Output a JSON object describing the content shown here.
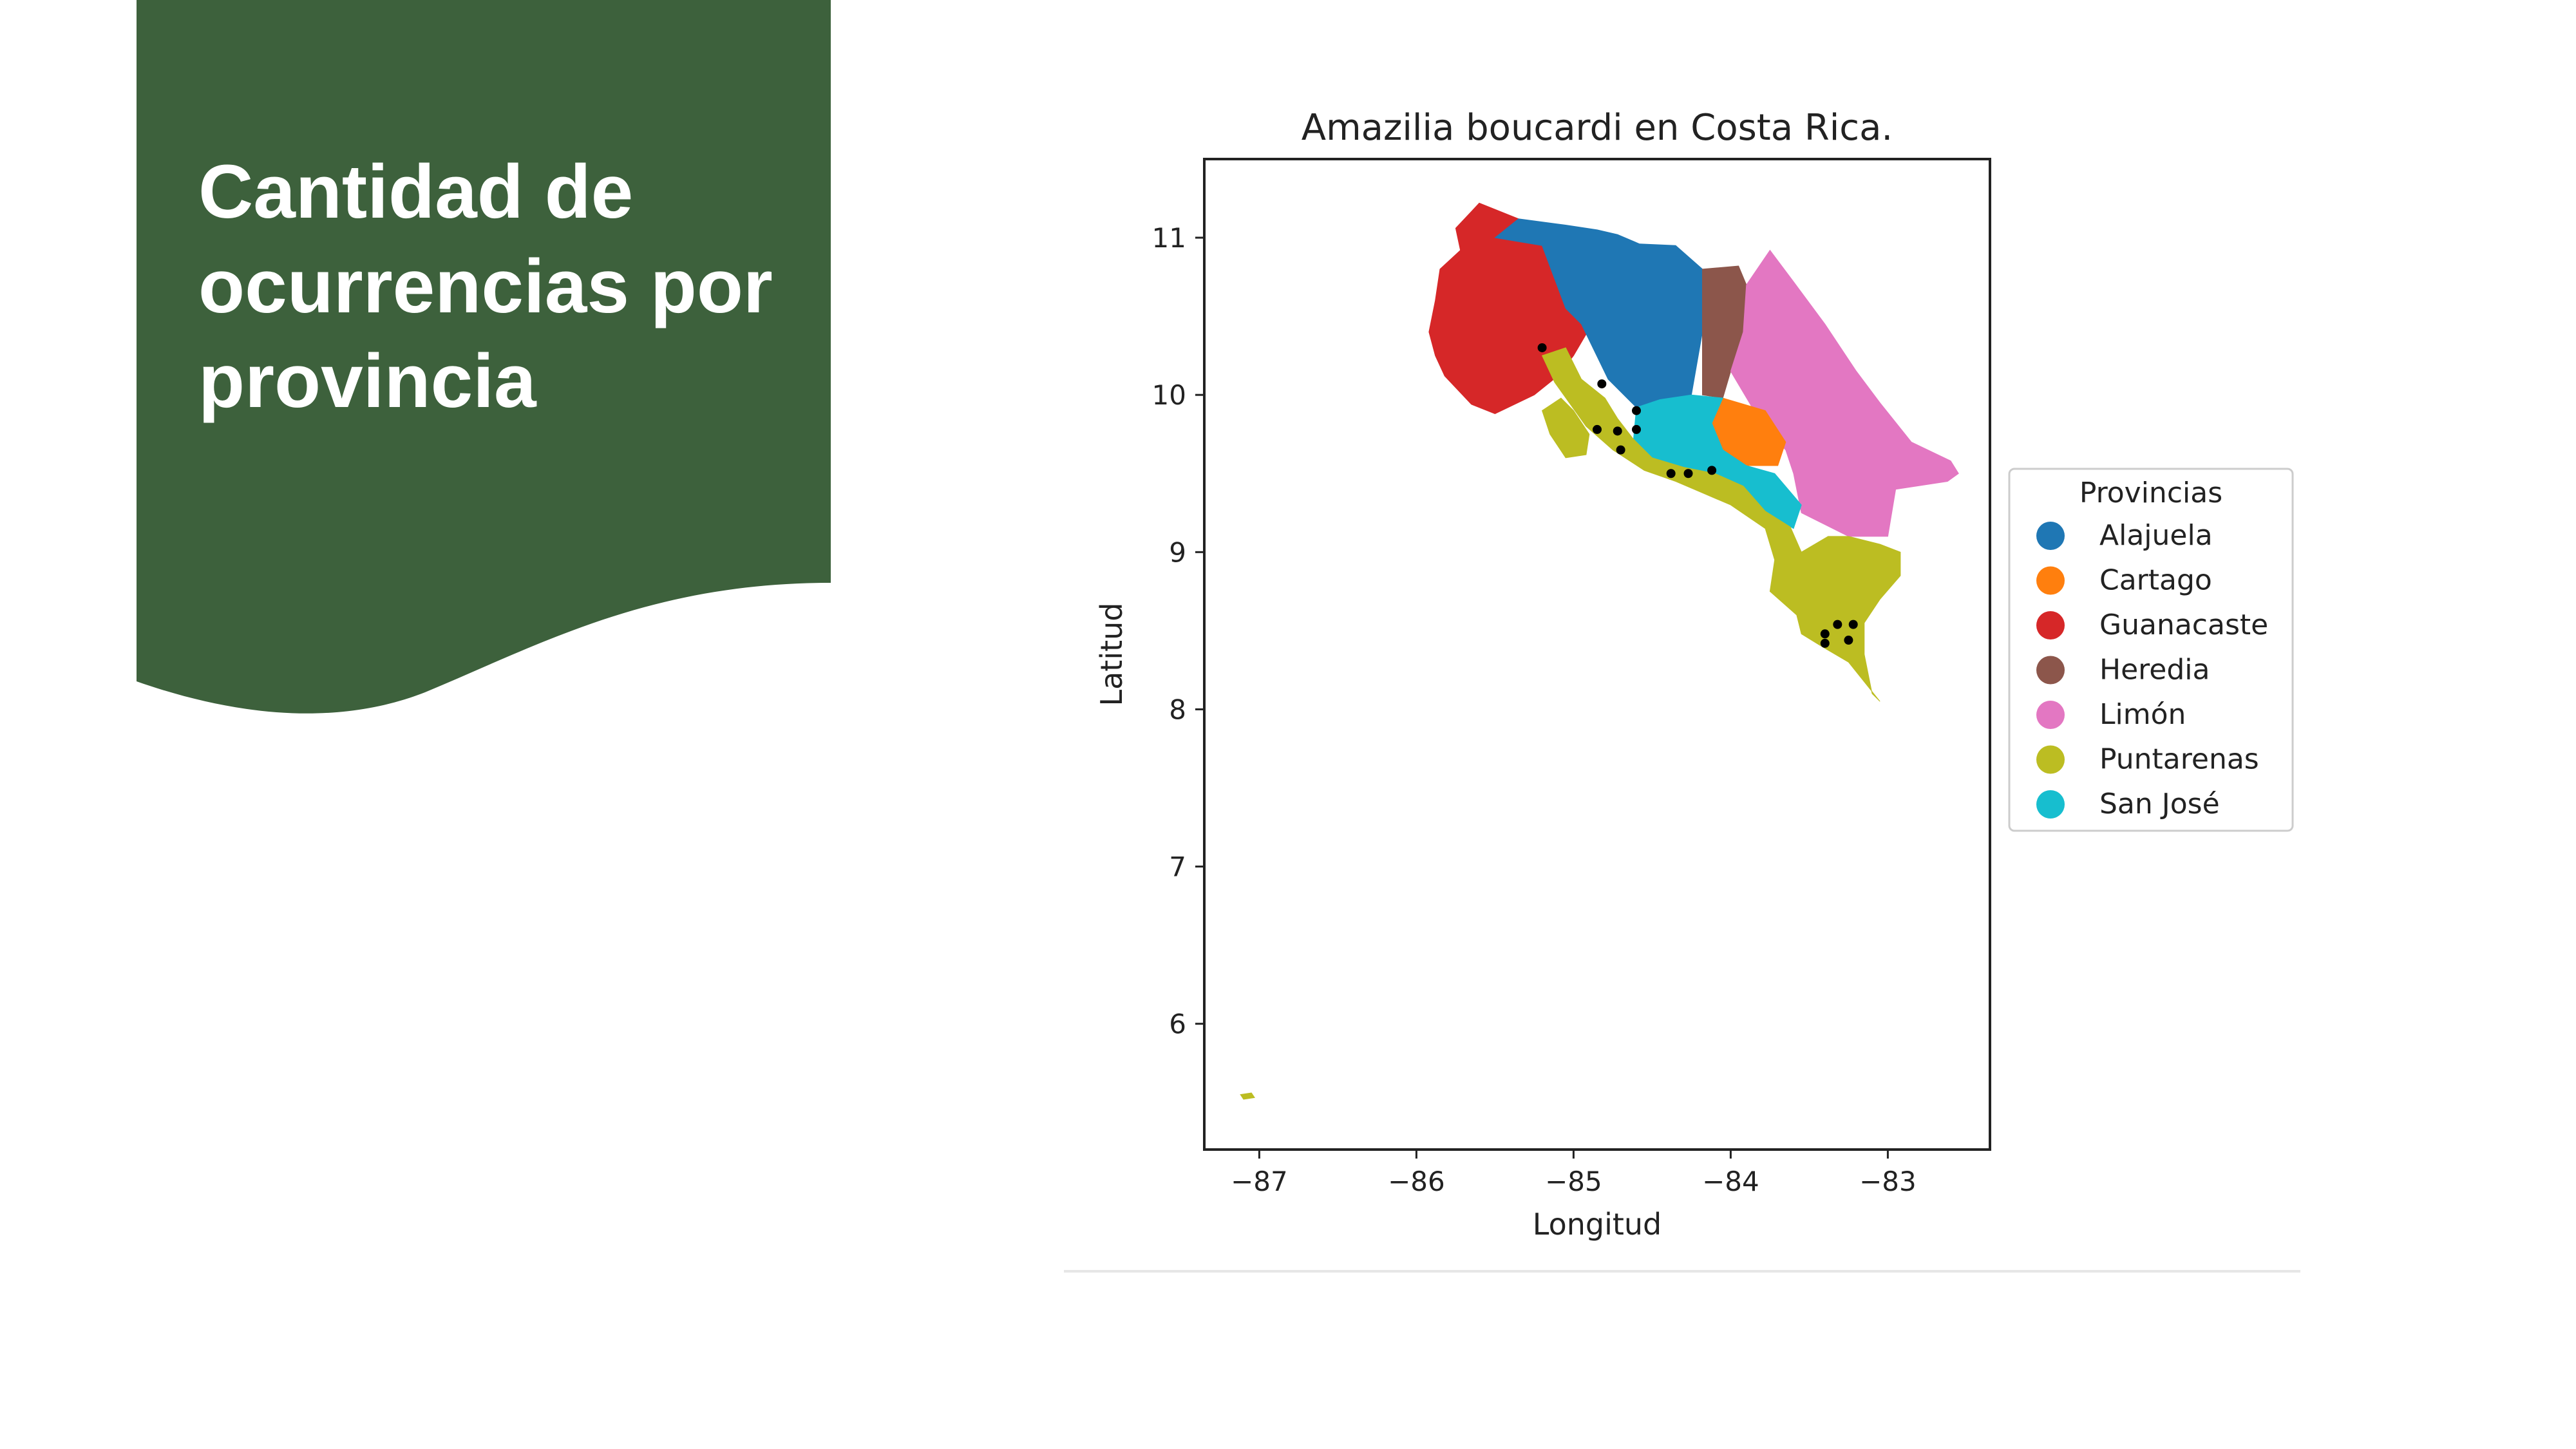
{
  "slide": {
    "title_lines": [
      "Cantidad de",
      "ocurrencias por",
      "provincia"
    ],
    "banner_color": "#3d613c"
  },
  "chart_data": {
    "type": "map",
    "title": "Amazilia boucardi en Costa Rica.",
    "xlabel": "Longitud",
    "ylabel": "Latitud",
    "xlim": [
      -87.35,
      -82.35
    ],
    "ylim": [
      5.2,
      11.5
    ],
    "xticks": [
      -87,
      -86,
      -85,
      -84,
      -83
    ],
    "yticks": [
      6,
      7,
      8,
      9,
      10,
      11
    ],
    "legend": {
      "title": "Provincias",
      "placement": "right",
      "entries": [
        {
          "name": "Alajuela",
          "color": "#1f77b4"
        },
        {
          "name": "Cartago",
          "color": "#ff7f0e"
        },
        {
          "name": "Guanacaste",
          "color": "#d62728"
        },
        {
          "name": "Heredia",
          "color": "#8c564b"
        },
        {
          "name": "Limón",
          "color": "#e377c2"
        },
        {
          "name": "Puntarenas",
          "color": "#bcbd22"
        },
        {
          "name": "San José",
          "color": "#17becf"
        }
      ]
    },
    "provinces": [
      {
        "name": "Guanacaste",
        "color": "#d62728",
        "polygon": [
          [
            -85.75,
            11.06
          ],
          [
            -85.6,
            11.22
          ],
          [
            -85.35,
            11.12
          ],
          [
            -85.2,
            11.02
          ],
          [
            -85.05,
            10.9
          ],
          [
            -85.0,
            10.55
          ],
          [
            -84.9,
            10.42
          ],
          [
            -85.0,
            10.25
          ],
          [
            -85.1,
            10.12
          ],
          [
            -85.25,
            10.0
          ],
          [
            -85.5,
            9.88
          ],
          [
            -85.65,
            9.94
          ],
          [
            -85.82,
            10.12
          ],
          [
            -85.88,
            10.25
          ],
          [
            -85.92,
            10.4
          ],
          [
            -85.88,
            10.6
          ],
          [
            -85.85,
            10.8
          ],
          [
            -85.72,
            10.92
          ],
          [
            -85.75,
            11.06
          ]
        ]
      },
      {
        "name": "Alajuela",
        "color": "#1f77b4",
        "polygon": [
          [
            -85.5,
            11.0
          ],
          [
            -85.35,
            11.12
          ],
          [
            -85.05,
            11.08
          ],
          [
            -84.85,
            11.05
          ],
          [
            -84.72,
            11.02
          ],
          [
            -84.58,
            10.96
          ],
          [
            -84.35,
            10.95
          ],
          [
            -84.18,
            10.8
          ],
          [
            -84.18,
            10.4
          ],
          [
            -84.25,
            10.0
          ],
          [
            -84.45,
            9.95
          ],
          [
            -84.6,
            9.92
          ],
          [
            -84.78,
            10.1
          ],
          [
            -84.95,
            10.45
          ],
          [
            -85.05,
            10.55
          ],
          [
            -85.2,
            10.95
          ],
          [
            -85.5,
            11.0
          ]
        ]
      },
      {
        "name": "Heredia",
        "color": "#8c564b",
        "polygon": [
          [
            -84.18,
            10.8
          ],
          [
            -83.95,
            10.82
          ],
          [
            -83.9,
            10.7
          ],
          [
            -83.92,
            10.4
          ],
          [
            -84.0,
            10.15
          ],
          [
            -84.05,
            9.98
          ],
          [
            -84.18,
            10.0
          ],
          [
            -84.18,
            10.4
          ],
          [
            -84.18,
            10.8
          ]
        ]
      },
      {
        "name": "Limón",
        "color": "#e377c2",
        "polygon": [
          [
            -83.9,
            10.7
          ],
          [
            -83.75,
            10.92
          ],
          [
            -83.6,
            10.72
          ],
          [
            -83.4,
            10.45
          ],
          [
            -83.2,
            10.15
          ],
          [
            -83.05,
            9.95
          ],
          [
            -82.85,
            9.7
          ],
          [
            -82.6,
            9.58
          ],
          [
            -82.55,
            9.5
          ],
          [
            -82.62,
            9.45
          ],
          [
            -82.95,
            9.4
          ],
          [
            -83.0,
            9.1
          ],
          [
            -83.25,
            9.1
          ],
          [
            -83.55,
            9.25
          ],
          [
            -83.6,
            9.5
          ],
          [
            -83.65,
            9.65
          ],
          [
            -83.78,
            9.78
          ],
          [
            -84.0,
            10.15
          ],
          [
            -83.92,
            10.4
          ],
          [
            -83.9,
            10.7
          ]
        ]
      },
      {
        "name": "Cartago",
        "color": "#ff7f0e",
        "polygon": [
          [
            -84.05,
            9.98
          ],
          [
            -83.78,
            9.9
          ],
          [
            -83.65,
            9.7
          ],
          [
            -83.7,
            9.55
          ],
          [
            -83.9,
            9.55
          ],
          [
            -84.05,
            9.65
          ],
          [
            -84.12,
            9.82
          ],
          [
            -84.05,
            9.98
          ]
        ]
      },
      {
        "name": "San José",
        "color": "#17becf",
        "polygon": [
          [
            -84.6,
            9.92
          ],
          [
            -84.45,
            9.97
          ],
          [
            -84.25,
            10.0
          ],
          [
            -84.05,
            9.98
          ],
          [
            -84.12,
            9.82
          ],
          [
            -84.05,
            9.65
          ],
          [
            -83.9,
            9.55
          ],
          [
            -83.72,
            9.5
          ],
          [
            -83.55,
            9.3
          ],
          [
            -83.6,
            9.15
          ],
          [
            -83.78,
            9.25
          ],
          [
            -83.92,
            9.4
          ],
          [
            -84.1,
            9.48
          ],
          [
            -84.3,
            9.52
          ],
          [
            -84.5,
            9.58
          ],
          [
            -84.62,
            9.7
          ],
          [
            -84.6,
            9.92
          ]
        ]
      },
      {
        "name": "Puntarenas",
        "color": "#bcbd22",
        "polygon": [
          [
            -85.05,
            10.3
          ],
          [
            -84.95,
            10.1
          ],
          [
            -84.8,
            9.98
          ],
          [
            -84.72,
            9.85
          ],
          [
            -84.62,
            9.72
          ],
          [
            -84.5,
            9.6
          ],
          [
            -84.3,
            9.54
          ],
          [
            -84.1,
            9.5
          ],
          [
            -83.92,
            9.42
          ],
          [
            -83.78,
            9.26
          ],
          [
            -83.62,
            9.16
          ],
          [
            -83.55,
            9.0
          ],
          [
            -83.38,
            9.1
          ],
          [
            -83.25,
            9.1
          ],
          [
            -83.05,
            9.05
          ],
          [
            -82.92,
            9.0
          ],
          [
            -82.92,
            8.85
          ],
          [
            -83.05,
            8.7
          ],
          [
            -83.15,
            8.55
          ],
          [
            -83.15,
            8.35
          ],
          [
            -83.1,
            8.1
          ],
          [
            -83.05,
            8.05
          ],
          [
            -83.25,
            8.3
          ],
          [
            -83.42,
            8.4
          ],
          [
            -83.55,
            8.48
          ],
          [
            -83.58,
            8.6
          ],
          [
            -83.75,
            8.75
          ],
          [
            -83.72,
            8.95
          ],
          [
            -83.78,
            9.15
          ],
          [
            -84.0,
            9.3
          ],
          [
            -84.35,
            9.45
          ],
          [
            -84.55,
            9.52
          ],
          [
            -84.75,
            9.65
          ],
          [
            -84.92,
            9.8
          ],
          [
            -85.12,
            10.08
          ],
          [
            -85.2,
            10.25
          ],
          [
            -85.05,
            10.3
          ]
        ]
      },
      {
        "name": "Puntarenas",
        "color": "#bcbd22",
        "polygon": [
          [
            -85.08,
            9.98
          ],
          [
            -85.0,
            9.9
          ],
          [
            -84.9,
            9.75
          ],
          [
            -84.92,
            9.62
          ],
          [
            -85.05,
            9.6
          ],
          [
            -85.15,
            9.75
          ],
          [
            -85.2,
            9.9
          ],
          [
            -85.08,
            9.98
          ]
        ]
      },
      {
        "name": "Puntarenas",
        "color": "#bcbd22",
        "polygon": [
          [
            -87.12,
            5.55
          ],
          [
            -87.05,
            5.56
          ],
          [
            -87.03,
            5.53
          ],
          [
            -87.1,
            5.52
          ],
          [
            -87.12,
            5.55
          ]
        ]
      }
    ],
    "occurrences": [
      {
        "x": -85.2,
        "y": 10.3
      },
      {
        "x": -84.82,
        "y": 10.07
      },
      {
        "x": -84.6,
        "y": 9.9
      },
      {
        "x": -84.6,
        "y": 9.78
      },
      {
        "x": -84.72,
        "y": 9.77
      },
      {
        "x": -84.85,
        "y": 9.78
      },
      {
        "x": -84.7,
        "y": 9.65
      },
      {
        "x": -84.38,
        "y": 9.5
      },
      {
        "x": -84.27,
        "y": 9.5
      },
      {
        "x": -84.12,
        "y": 9.52
      },
      {
        "x": -83.4,
        "y": 8.48
      },
      {
        "x": -83.4,
        "y": 8.42
      },
      {
        "x": -83.32,
        "y": 8.54
      },
      {
        "x": -83.22,
        "y": 8.54
      },
      {
        "x": -83.25,
        "y": 8.44
      }
    ]
  }
}
